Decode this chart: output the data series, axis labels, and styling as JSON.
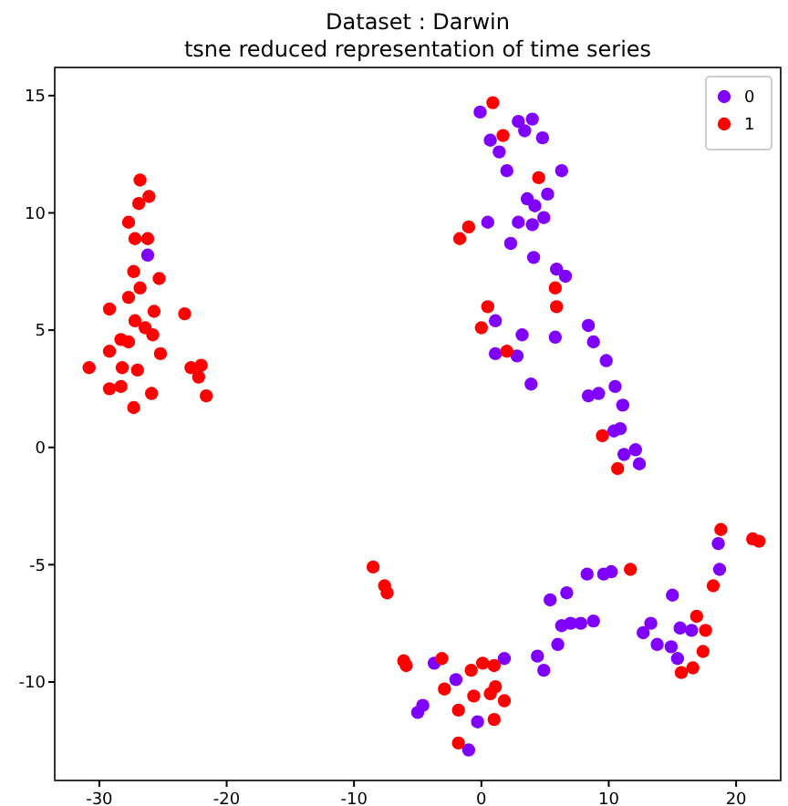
{
  "chart_data": {
    "type": "scatter",
    "title": "Dataset : Darwin",
    "subtitle": "tsne reduced representation of time series",
    "xlim": [
      -33.5,
      23.5
    ],
    "ylim": [
      -14.2,
      16.2
    ],
    "xticks": [
      -30,
      -20,
      -10,
      0,
      10,
      20
    ],
    "yticks": [
      -10,
      -5,
      0,
      5,
      10,
      15
    ],
    "grid": false,
    "legend": "top right",
    "marker": "circle",
    "series": [
      {
        "name": "0",
        "color": "#8000ff",
        "x": [
          -26.2,
          -0.1,
          2.9,
          4.0,
          3.4,
          4.8,
          0.7,
          1.4,
          2.0,
          6.3,
          5.2,
          3.6,
          4.2,
          4.9,
          0.5,
          2.9,
          4.0,
          2.3,
          4.1,
          5.9,
          6.6,
          1.1,
          8.4,
          3.2,
          5.8,
          8.8,
          1.1,
          2.8,
          9.8,
          3.9,
          10.5,
          8.4,
          9.2,
          11.1,
          10.9,
          10.4,
          12.1,
          11.2,
          12.4,
          5.4,
          6.7,
          8.3,
          9.6,
          10.2,
          6.3,
          7.0,
          7.8,
          8.8,
          6.0,
          -3.7,
          1.8,
          4.4,
          4.9,
          -2.0,
          -4.6,
          -5.0,
          -0.3,
          -1.0,
          18.6,
          18.7,
          15.0,
          13.3,
          12.7,
          15.6,
          16.5,
          13.8,
          14.9,
          15.4
        ],
        "values": [
          8.2,
          14.3,
          13.9,
          14.0,
          13.5,
          13.2,
          13.1,
          12.6,
          11.8,
          11.8,
          10.8,
          10.6,
          10.3,
          9.8,
          9.6,
          9.6,
          9.5,
          8.7,
          8.1,
          7.6,
          7.3,
          5.4,
          5.2,
          4.8,
          4.7,
          4.5,
          4.0,
          3.9,
          3.7,
          2.7,
          2.6,
          2.2,
          2.3,
          1.8,
          0.8,
          0.7,
          -0.1,
          -0.3,
          -0.7,
          -6.5,
          -6.2,
          -5.4,
          -5.4,
          -5.3,
          -7.6,
          -7.5,
          -7.5,
          -7.4,
          -8.4,
          -9.2,
          -9.0,
          -8.9,
          -9.5,
          -9.9,
          -11.0,
          -11.3,
          -11.7,
          -12.9,
          -4.1,
          -5.2,
          -6.3,
          -7.5,
          -7.9,
          -7.7,
          -7.8,
          -8.4,
          -8.5,
          -9.0
        ]
      },
      {
        "name": "1",
        "color": "#ff0000",
        "x": [
          -26.8,
          -26.1,
          -26.9,
          -27.7,
          -27.2,
          -26.2,
          -27.3,
          -25.3,
          -26.8,
          -27.7,
          -29.2,
          -25.7,
          -23.3,
          -27.2,
          -26.4,
          -25.8,
          -28.3,
          -27.7,
          -29.2,
          -25.2,
          -30.8,
          -28.2,
          -27.0,
          -22.8,
          -22.0,
          -22.2,
          -29.2,
          -28.3,
          -25.9,
          -21.6,
          -27.3,
          0.9,
          1.7,
          4.5,
          -1.0,
          -1.7,
          5.8,
          0.5,
          5.9,
          0.0,
          2.0,
          9.5,
          10.7,
          -8.5,
          -7.6,
          -7.4,
          -6.1,
          -5.9,
          -3.1,
          0.1,
          -0.8,
          1.0,
          -2.9,
          1.1,
          0.7,
          -0.6,
          1.8,
          -1.8,
          1.0,
          -1.8,
          18.8,
          21.3,
          21.8,
          18.2,
          11.7,
          16.9,
          17.6,
          17.4,
          16.6,
          15.7
        ],
        "values": [
          11.4,
          10.7,
          10.4,
          9.6,
          8.9,
          8.9,
          7.5,
          7.2,
          6.8,
          6.4,
          5.9,
          5.8,
          5.7,
          5.4,
          5.1,
          4.8,
          4.6,
          4.5,
          4.1,
          4.0,
          3.4,
          3.4,
          3.3,
          3.4,
          3.5,
          3.0,
          2.5,
          2.6,
          2.3,
          2.2,
          1.7,
          14.7,
          13.3,
          11.5,
          9.4,
          8.9,
          6.8,
          6.0,
          6.0,
          5.1,
          4.1,
          0.5,
          -0.9,
          -5.1,
          -5.9,
          -6.2,
          -9.1,
          -9.3,
          -9.0,
          -9.2,
          -9.5,
          -9.3,
          -10.3,
          -10.2,
          -10.5,
          -10.6,
          -10.8,
          -11.2,
          -11.6,
          -12.6,
          -3.5,
          -3.9,
          -4.0,
          -5.9,
          -5.2,
          -7.2,
          -7.8,
          -8.7,
          -9.4,
          -9.6
        ]
      }
    ]
  }
}
